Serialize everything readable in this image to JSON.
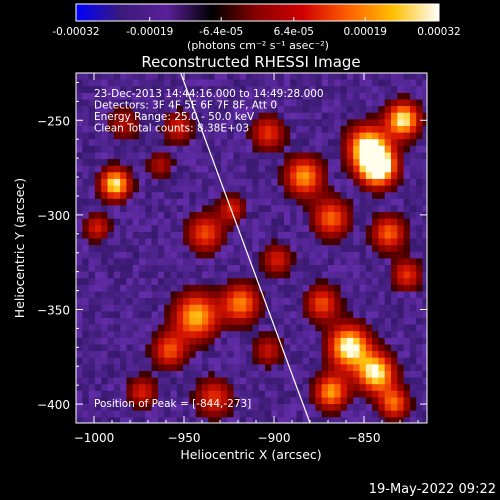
{
  "chart_data": {
    "type": "heatmap",
    "title": "Reconstructed RHESSI Image",
    "xlabel": "Heliocentric X (arcsec)",
    "ylabel": "Heliocentric Y (arcsec)",
    "xlim": [
      -1010,
      -815
    ],
    "ylim": [
      -410,
      -225
    ],
    "x_ticks": [
      -1000,
      -950,
      -900,
      -850
    ],
    "x_tick_labels": [
      "−1000",
      "−950",
      "−900",
      "−850"
    ],
    "y_ticks": [
      -250,
      -300,
      -350,
      -400
    ],
    "y_tick_labels": [
      "−250",
      "−300",
      "−350",
      "−400"
    ],
    "colorbar": {
      "min": -0.00032,
      "max": 0.00032,
      "tick_values": [
        -0.00032,
        -0.00019,
        -6.4e-05,
        6.4e-05,
        0.00019,
        0.00032
      ],
      "tick_labels": [
        "-0.00032",
        "-0.00019",
        "-6.4e-05",
        "6.4e-05",
        "0.00019",
        "0.00032"
      ],
      "units_label": "(photons cm⁻² s⁻¹ asec⁻²)",
      "colors": [
        "#0000ff",
        "#3a1a7a",
        "#5a1f9a",
        "#000000",
        "#8a0000",
        "#d00000",
        "#ff6000",
        "#ffc000",
        "#ffffff"
      ]
    },
    "annotations": [
      "23-Dec-2013 14:44:16.000 to 14:49:28.000",
      "Detectors: 3F 4F 5F 6F 7F 8F, Att 0",
      "Energy Range: 25.0 - 50.0 keV",
      "Clean     Total counts: 8.38E+03"
    ],
    "peak_label": "Position of Peak = [-844,-273]",
    "peak": [
      -844,
      -273
    ],
    "limb_line": [
      [
        -953,
        -222
      ],
      [
        -880,
        -410
      ]
    ],
    "blobs": [
      {
        "x": -990,
        "y": -282,
        "r": 8,
        "v": 0.85
      },
      {
        "x": -1000,
        "y": -305,
        "r": 7,
        "v": 0.45
      },
      {
        "x": -985,
        "y": -250,
        "r": 9,
        "v": 0.35
      },
      {
        "x": -940,
        "y": -308,
        "r": 10,
        "v": 0.55
      },
      {
        "x": -925,
        "y": -295,
        "r": 7,
        "v": 0.45
      },
      {
        "x": -945,
        "y": -352,
        "r": 12,
        "v": 0.75
      },
      {
        "x": -920,
        "y": -345,
        "r": 10,
        "v": 0.65
      },
      {
        "x": -960,
        "y": -370,
        "r": 9,
        "v": 0.55
      },
      {
        "x": -975,
        "y": -392,
        "r": 8,
        "v": 0.45
      },
      {
        "x": -935,
        "y": -395,
        "r": 10,
        "v": 0.5
      },
      {
        "x": -905,
        "y": -370,
        "r": 8,
        "v": 0.4
      },
      {
        "x": -905,
        "y": -255,
        "r": 9,
        "v": 0.5
      },
      {
        "x": -885,
        "y": -278,
        "r": 10,
        "v": 0.7
      },
      {
        "x": -900,
        "y": -322,
        "r": 8,
        "v": 0.45
      },
      {
        "x": -870,
        "y": -300,
        "r": 10,
        "v": 0.6
      },
      {
        "x": -850,
        "y": -262,
        "r": 11,
        "v": 0.8
      },
      {
        "x": -844,
        "y": -273,
        "r": 10,
        "v": 1.0
      },
      {
        "x": -830,
        "y": -248,
        "r": 9,
        "v": 0.85
      },
      {
        "x": -838,
        "y": -308,
        "r": 9,
        "v": 0.6
      },
      {
        "x": -828,
        "y": -330,
        "r": 8,
        "v": 0.5
      },
      {
        "x": -875,
        "y": -345,
        "r": 9,
        "v": 0.55
      },
      {
        "x": -860,
        "y": -368,
        "r": 11,
        "v": 0.9
      },
      {
        "x": -845,
        "y": -382,
        "r": 10,
        "v": 0.85
      },
      {
        "x": -870,
        "y": -392,
        "r": 9,
        "v": 0.7
      },
      {
        "x": -835,
        "y": -398,
        "r": 8,
        "v": 0.6
      },
      {
        "x": -955,
        "y": -252,
        "r": 8,
        "v": 0.45
      },
      {
        "x": -965,
        "y": -272,
        "r": 7,
        "v": 0.35
      }
    ]
  },
  "footer": {
    "date_stamp": "19-May-2022 09:22"
  }
}
